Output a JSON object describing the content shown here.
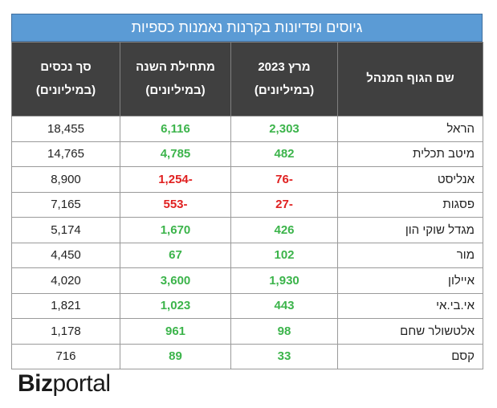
{
  "title": "גיוסים ופדיונות בקרנות נאמנות כספיות",
  "headers": [
    {
      "line1": "שם הגוף המנהל",
      "line2": ""
    },
    {
      "line1": "מרץ 2023",
      "line2": "(במיליונים)"
    },
    {
      "line1": "מתחילת השנה",
      "line2": "(במיליונים)"
    },
    {
      "line1": "סך נכסים",
      "line2": "(במיליונים)"
    }
  ],
  "chart_data": {
    "type": "table",
    "title": "גיוסים ופדיונות בקרנות נאמנות כספיות",
    "columns": [
      "שם הגוף המנהל",
      "מרץ 2023 (במיליונים)",
      "מתחילת השנה (במיליונים)",
      "סך נכסים (במיליונים)"
    ],
    "rows": [
      {
        "name": "הראל",
        "march": "2,303",
        "ytd": "6,116",
        "assets": "18,455"
      },
      {
        "name": "מיטב תכלית",
        "march": "482",
        "ytd": "4,785",
        "assets": "14,765"
      },
      {
        "name": "אנליסט",
        "march": "-76",
        "ytd": "-1,254",
        "assets": "8,900"
      },
      {
        "name": "פסגות",
        "march": "-27",
        "ytd": "-553",
        "assets": "7,165"
      },
      {
        "name": "מגדל שוקי הון",
        "march": "426",
        "ytd": "1,670",
        "assets": "5,174"
      },
      {
        "name": "מור",
        "march": "102",
        "ytd": "67",
        "assets": "4,450"
      },
      {
        "name": "איילון",
        "march": "1,930",
        "ytd": "3,600",
        "assets": "4,020"
      },
      {
        "name": "אי.בי.אי",
        "march": "443",
        "ytd": "1,023",
        "assets": "1,821"
      },
      {
        "name": "אלטשולר שחם",
        "march": "98",
        "ytd": "961",
        "assets": "1,178"
      },
      {
        "name": "קסם",
        "march": "33",
        "ytd": "89",
        "assets": "716"
      }
    ],
    "colors": {
      "positive": "#3cb44b",
      "negative": "#e02020",
      "header_bg": "#404040",
      "title_bg": "#5b9bd5"
    }
  },
  "logo": {
    "bold": "Biz",
    "regular": "portal"
  }
}
